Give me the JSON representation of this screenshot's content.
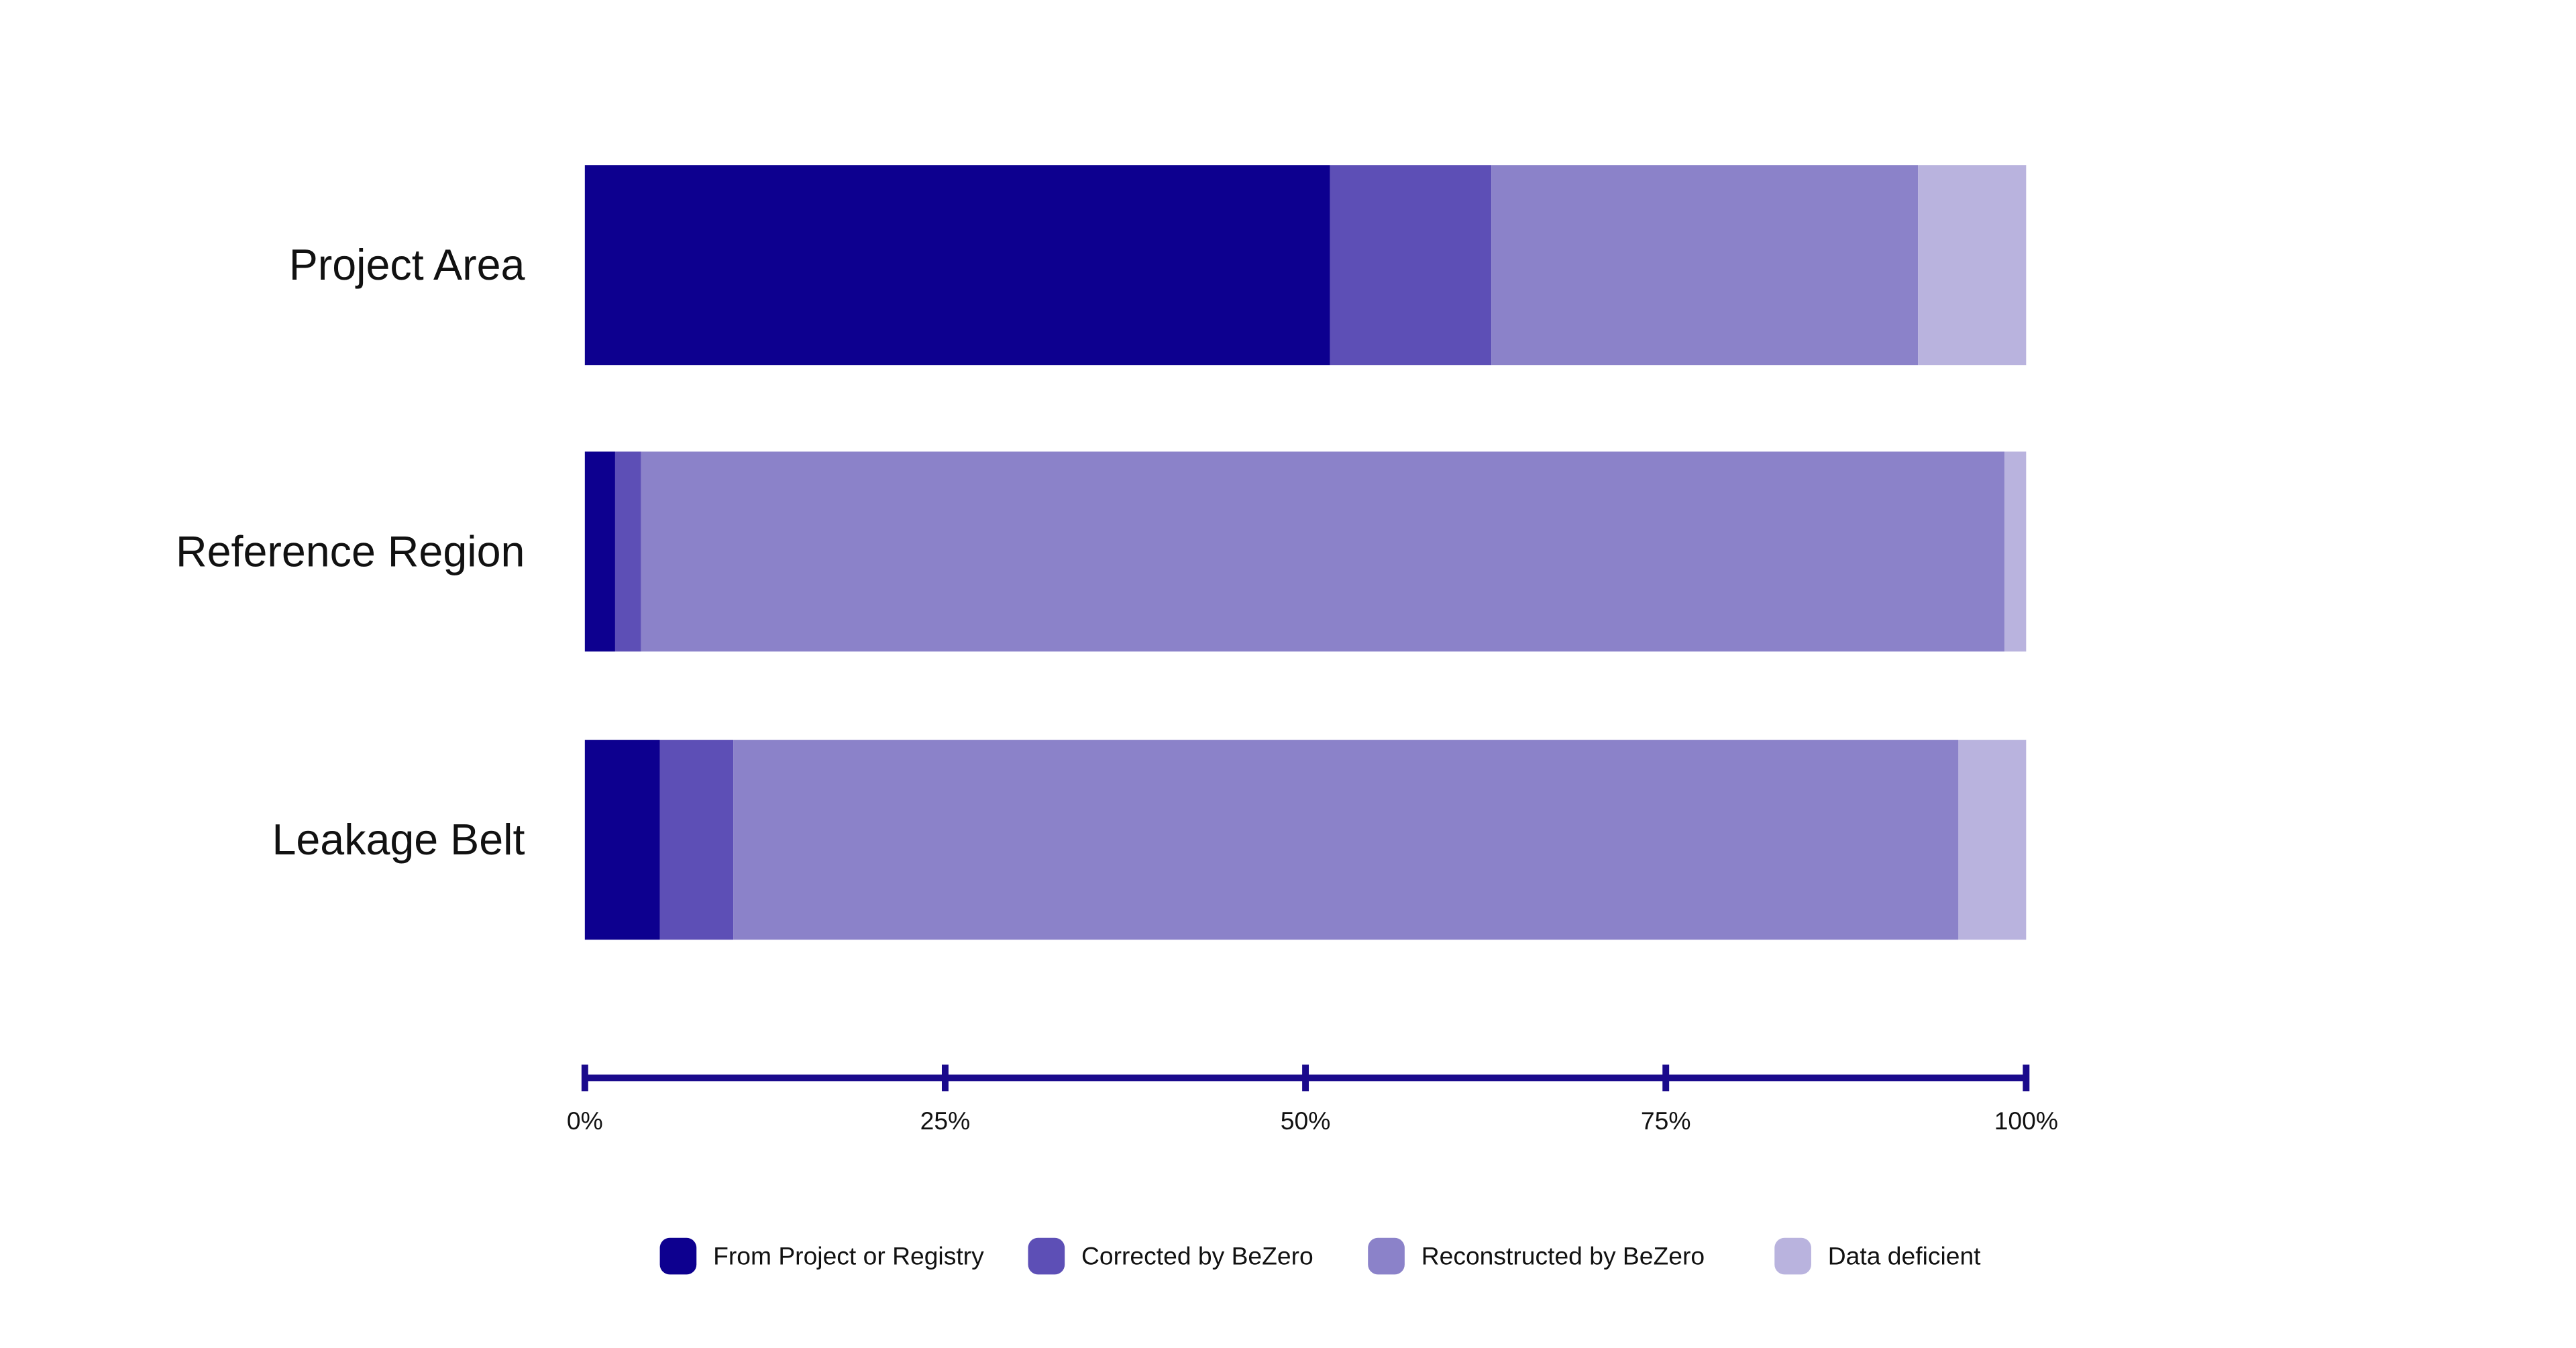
{
  "chart_data": {
    "type": "stacked-bar-horizontal",
    "categories": [
      "Project Area",
      "Reference Region",
      "Leakage Belt"
    ],
    "series": [
      {
        "name": "From Project or Registry",
        "color": "#0d008f",
        "values": [
          51.7,
          2.1,
          5.2
        ]
      },
      {
        "name": "Corrected by BeZero",
        "color": "#5d4fb6",
        "values": [
          11.2,
          1.8,
          5.1
        ]
      },
      {
        "name": "Reconstructed by BeZero",
        "color": "#8b82c9",
        "values": [
          29.6,
          94.6,
          85.0
        ]
      },
      {
        "name": "Data deficient",
        "color": "#b9b3de",
        "values": [
          7.5,
          1.5,
          4.7
        ]
      }
    ],
    "xlim": [
      0,
      100
    ],
    "xticks": [
      {
        "value": 0,
        "label": "0%"
      },
      {
        "value": 25,
        "label": "25%"
      },
      {
        "value": 50,
        "label": "50%"
      },
      {
        "value": 75,
        "label": "75%"
      },
      {
        "value": 100,
        "label": "100%"
      }
    ],
    "axis_color": "#1a0a8c"
  }
}
